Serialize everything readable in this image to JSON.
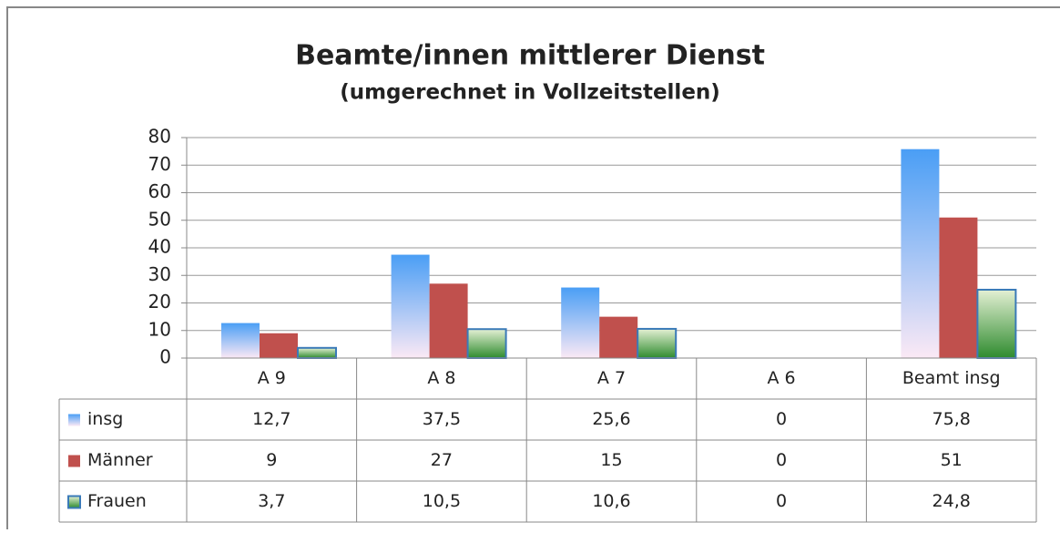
{
  "chart_data": {
    "type": "bar",
    "title": "Beamte/innen mittlerer Dienst",
    "subtitle": "(umgerechnet in Vollzeitstellen)",
    "categories": [
      "A 9",
      "A 8",
      "A 7",
      "A 6",
      "Beamt insg"
    ],
    "series": [
      {
        "name": "insg",
        "color": "#4a9ef5",
        "values": [
          12.7,
          37.5,
          25.6,
          0,
          75.8
        ],
        "value_labels": [
          "12,7",
          "37,5",
          "25,6",
          "0",
          "75,8"
        ]
      },
      {
        "name": "Männer",
        "color": "#c0504d",
        "values": [
          9,
          27,
          15,
          0,
          51
        ],
        "value_labels": [
          "9",
          "27",
          "15",
          "0",
          "51"
        ]
      },
      {
        "name": "Frauen",
        "color": "#2e8b2e",
        "values": [
          3.7,
          10.5,
          10.6,
          0,
          24.8
        ],
        "value_labels": [
          "3,7",
          "10,5",
          "10,6",
          "0",
          "24,8"
        ]
      }
    ],
    "ylim": [
      0,
      80
    ],
    "yticks": [
      0,
      10,
      20,
      30,
      40,
      50,
      60,
      70,
      80
    ],
    "grid": true
  }
}
